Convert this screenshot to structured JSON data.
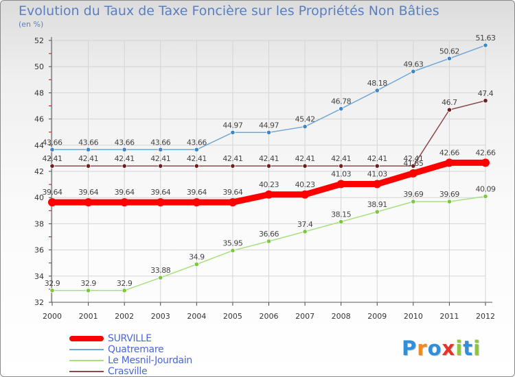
{
  "title": "Evolution du Taux de Taxe Foncière sur les Propriétés Non Bâties",
  "subtitle": "(en %)",
  "chart_data": {
    "type": "line",
    "x": [
      "2000",
      "2001",
      "2002",
      "2003",
      "2004",
      "2005",
      "2006",
      "2007",
      "2008",
      "2009",
      "2010",
      "2011",
      "2012"
    ],
    "ylim": [
      32,
      52
    ],
    "yticks": [
      "32",
      "34",
      "36",
      "38",
      "40",
      "42",
      "44",
      "46",
      "48",
      "50",
      "52"
    ],
    "grid": true,
    "legend_position": "bottom-left",
    "series": [
      {
        "name": "SURVILLE",
        "color": "#ff0000",
        "values": [
          39.64,
          39.64,
          39.64,
          39.64,
          39.64,
          39.64,
          40.23,
          40.23,
          41.03,
          41.03,
          41.85,
          42.66,
          42.66
        ],
        "labels": [
          "39.64",
          "39.64",
          "39.64",
          "39.64",
          "39.64",
          "39.64",
          "40.23",
          "40.23",
          "41.03",
          "41.03",
          "41.85",
          "42.66",
          "42.66"
        ]
      },
      {
        "name": "Quatremare",
        "color": "#6fa8d8",
        "marker_color": "#3f86c8",
        "values": [
          43.66,
          43.66,
          43.66,
          43.66,
          43.66,
          44.97,
          44.97,
          45.42,
          46.78,
          48.18,
          49.63,
          50.62,
          51.63
        ],
        "labels": [
          "43.66",
          "43.66",
          "43.66",
          "43.66",
          "43.66",
          "44.97",
          "44.97",
          "45.42",
          "46.78",
          "48.18",
          "49.63",
          "50.62",
          "51.63"
        ]
      },
      {
        "name": "Le Mesnil-Jourdain",
        "color": "#a8e080",
        "marker_color": "#7cc83c",
        "values": [
          32.9,
          32.9,
          32.9,
          33.88,
          34.9,
          35.95,
          36.66,
          37.4,
          38.15,
          38.91,
          39.69,
          39.69,
          40.09
        ],
        "labels": [
          "32.9",
          "32.9",
          "32.9",
          "33.88",
          "34.9",
          "35.95",
          "36.66",
          "37.4",
          "38.15",
          "38.91",
          "39.69",
          "39.69",
          "40.09"
        ]
      },
      {
        "name": "Crasville",
        "color": "#8b4a4a",
        "marker_color": "#6b1f1f",
        "values": [
          42.41,
          42.41,
          42.41,
          42.41,
          42.41,
          42.41,
          42.41,
          42.41,
          42.41,
          42.41,
          42.41,
          46.7,
          47.4
        ],
        "labels": [
          "42.41",
          "42.41",
          "42.41",
          "42.41",
          "42.41",
          "42.41",
          "42.41",
          "42.41",
          "42.41",
          "42.41",
          "42.41",
          "46.7",
          "47.4"
        ]
      }
    ]
  },
  "logo": {
    "text": "Proxiti",
    "letters": [
      {
        "ch": "P",
        "color": "#2f8fd8"
      },
      {
        "ch": "r",
        "color": "#f08a1c"
      },
      {
        "ch": "o",
        "color": "#2f8fd8"
      },
      {
        "ch": "x",
        "color": "#e2342a"
      },
      {
        "ch": "i",
        "color": "#8cc63f"
      },
      {
        "ch": "t",
        "color": "#2f8fd8"
      },
      {
        "ch": "i",
        "color": "#8cc63f"
      }
    ]
  }
}
